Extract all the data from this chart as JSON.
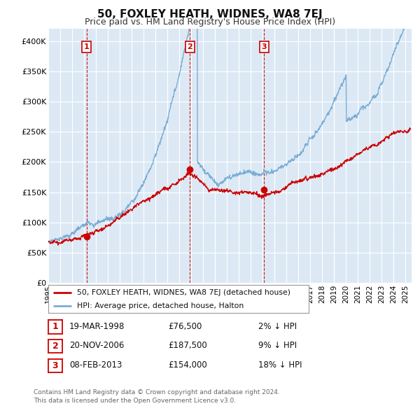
{
  "title": "50, FOXLEY HEATH, WIDNES, WA8 7EJ",
  "subtitle": "Price paid vs. HM Land Registry's House Price Index (HPI)",
  "ylim": [
    0,
    420000
  ],
  "yticks": [
    0,
    50000,
    100000,
    150000,
    200000,
    250000,
    300000,
    350000,
    400000
  ],
  "ytick_labels": [
    "£0",
    "£50K",
    "£100K",
    "£150K",
    "£200K",
    "£250K",
    "£300K",
    "£350K",
    "£400K"
  ],
  "background_color": "#ffffff",
  "plot_bg_color": "#dce9f5",
  "grid_color": "#ffffff",
  "hpi_color": "#7aadd4",
  "price_color": "#cc0000",
  "sale_marker_color": "#cc0000",
  "dashed_line_color": "#cc0000",
  "legend_label_price": "50, FOXLEY HEATH, WIDNES, WA8 7EJ (detached house)",
  "legend_label_hpi": "HPI: Average price, detached house, Halton",
  "sales": [
    {
      "num": 1,
      "date": "19-MAR-1998",
      "price": 76500,
      "pct": "2%",
      "x_year": 1998.22
    },
    {
      "num": 2,
      "date": "20-NOV-2006",
      "price": 187500,
      "pct": "9%",
      "x_year": 2006.89
    },
    {
      "num": 3,
      "date": "08-FEB-2013",
      "price": 154000,
      "pct": "18%",
      "x_year": 2013.11
    }
  ],
  "footnote1": "Contains HM Land Registry data © Crown copyright and database right 2024.",
  "footnote2": "This data is licensed under the Open Government Licence v3.0.",
  "x_start": 1995.0,
  "x_end": 2025.5,
  "xtick_years": [
    1995,
    1996,
    1997,
    1998,
    1999,
    2000,
    2001,
    2002,
    2003,
    2004,
    2005,
    2006,
    2007,
    2008,
    2009,
    2010,
    2011,
    2012,
    2013,
    2014,
    2015,
    2016,
    2017,
    2018,
    2019,
    2020,
    2021,
    2022,
    2023,
    2024,
    2025
  ]
}
